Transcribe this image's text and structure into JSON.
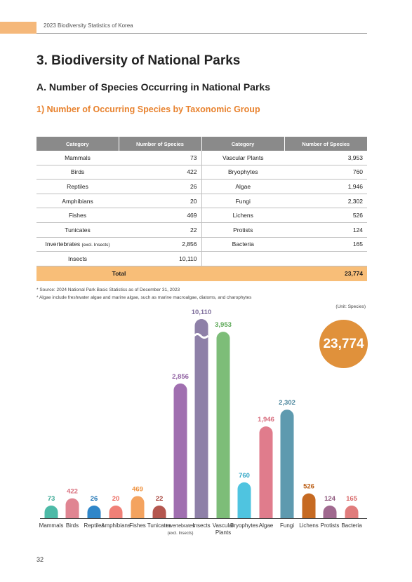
{
  "header": {
    "running_title": "2023 Biodiversity Statistics of Korea"
  },
  "headings": {
    "section": "3. Biodiversity of National Parks",
    "subsection": "A. Number of Species Occurring in National Parks",
    "subsubsection": "1) Number of Occurring Species by Taxonomic Group"
  },
  "table": {
    "headers": [
      "Category",
      "Number of Species",
      "Category",
      "Number of Species"
    ],
    "rows": [
      [
        "Mammals",
        "73",
        "Vascular Plants",
        "3,953"
      ],
      [
        "Birds",
        "422",
        "Bryophytes",
        "760"
      ],
      [
        "Reptiles",
        "26",
        "Algae",
        "1,946"
      ],
      [
        "Amphibians",
        "20",
        "Fungi",
        "2,302"
      ],
      [
        "Fishes",
        "469",
        "Lichens",
        "526"
      ],
      [
        "Tunicates",
        "22",
        "Protists",
        "124"
      ],
      [
        "Invertebrates",
        "2,856",
        "Bacteria",
        "165"
      ],
      [
        "Insects",
        "10,110",
        "",
        ""
      ]
    ],
    "invert_note": "(excl. Insects)",
    "total_label": "Total",
    "total_value": "23,774"
  },
  "notes": [
    "* Source: 2024 National Park Basic Statistics as of December 31, 2023",
    "* Algae include freshwater algae and marine algae, such as marine macroalgae, diatoms, and charophytes"
  ],
  "unit": "(Unit: Species)",
  "total_circle": "23,774",
  "page_number": "32",
  "chart_data": {
    "type": "bar",
    "categories": [
      "Mammals",
      "Birds",
      "Reptiles",
      "Amphibians",
      "Fishes",
      "Tunicates",
      "Invertebrates",
      "Insects",
      "Vascular Plants",
      "Bryophytes",
      "Algae",
      "Fungi",
      "Lichens",
      "Protists",
      "Bacteria"
    ],
    "category_sublabels": [
      "",
      "",
      "",
      "",
      "",
      "",
      "(excl. Insects)",
      "",
      "",
      "",
      "",
      "",
      "",
      "",
      ""
    ],
    "values": [
      73,
      422,
      26,
      20,
      469,
      22,
      2856,
      10110,
      3953,
      760,
      1946,
      2302,
      526,
      124,
      165
    ],
    "value_labels": [
      "73",
      "422",
      "26",
      "20",
      "469",
      "22",
      "2,856",
      "10,110",
      "3,953",
      "760",
      "1,946",
      "2,302",
      "526",
      "124",
      "165"
    ],
    "colors": [
      "#4dbaa7",
      "#e08592",
      "#2f86c9",
      "#f08077",
      "#f4a35f",
      "#b4574f",
      "#a06fb0",
      "#8e80a8",
      "#7dbd78",
      "#4fc4e0",
      "#e07c8c",
      "#5e9aaf",
      "#c66a22",
      "#a0698f",
      "#e07c7c"
    ],
    "label_colors": [
      "#3aa894",
      "#d9707e",
      "#2075b5",
      "#ec6a60",
      "#ef9340",
      "#a8473f",
      "#8e5ea0",
      "#7e6e9c",
      "#5aa755",
      "#34a8c7",
      "#d76a7b",
      "#4a859c",
      "#bb5e14",
      "#8e587d",
      "#d86a6a"
    ],
    "axis_break_on": "Insects",
    "ylim": [
      0,
      4000
    ]
  }
}
